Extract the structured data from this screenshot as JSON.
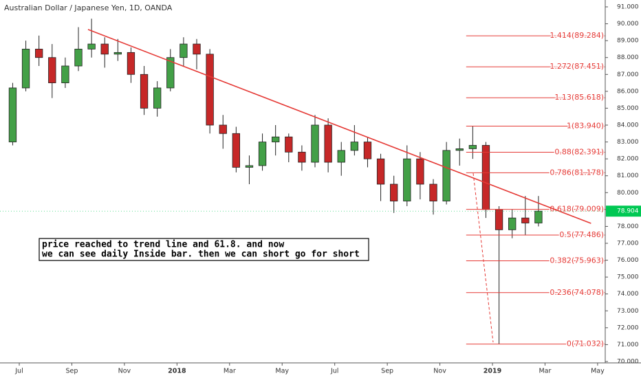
{
  "chart_data": {
    "type": "candlestick",
    "title": "Australian Dollar / Japanese Yen, 1D, OANDA",
    "categories": [
      null,
      null,
      null,
      null,
      null,
      null,
      null,
      null,
      null,
      null,
      null,
      null,
      null,
      null,
      null,
      null,
      null,
      null,
      null,
      null,
      null,
      null,
      null,
      null,
      null,
      null,
      null,
      null,
      null,
      null,
      null,
      null,
      null,
      null,
      null,
      null,
      null,
      null,
      null,
      null,
      null
    ],
    "open": [
      83.0,
      86.2,
      88.5,
      88.0,
      86.5,
      87.5,
      88.5,
      88.8,
      88.2,
      88.3,
      87.0,
      85.0,
      86.2,
      88.0,
      88.8,
      88.2,
      84.0,
      83.5,
      81.5,
      81.6,
      83.0,
      83.3,
      82.4,
      81.8,
      84.0,
      81.8,
      82.5,
      83.0,
      82.0,
      80.5,
      79.5,
      82.0,
      80.5,
      79.5,
      82.5,
      82.6,
      82.8,
      79.0,
      77.8,
      78.5,
      78.2
    ],
    "high": [
      86.5,
      89.0,
      89.3,
      88.8,
      88.0,
      89.8,
      90.3,
      89.2,
      89.1,
      88.6,
      87.5,
      86.6,
      88.5,
      89.2,
      89.1,
      88.5,
      84.6,
      83.9,
      82.2,
      83.5,
      84.0,
      83.5,
      82.8,
      84.6,
      84.4,
      83.0,
      84.0,
      83.3,
      82.3,
      81.0,
      82.8,
      82.4,
      80.8,
      83.0,
      83.2,
      83.94,
      83.0,
      79.2,
      79.0,
      79.8,
      79.8
    ],
    "low": [
      82.8,
      86.0,
      87.5,
      85.6,
      86.2,
      87.2,
      88.0,
      87.4,
      87.8,
      86.5,
      84.6,
      84.5,
      86.0,
      87.5,
      87.3,
      83.5,
      82.6,
      81.2,
      80.5,
      81.3,
      82.2,
      81.8,
      81.3,
      81.5,
      81.2,
      81.0,
      82.2,
      81.5,
      79.5,
      78.8,
      79.2,
      79.6,
      78.7,
      79.3,
      81.6,
      82.0,
      78.5,
      71.032,
      77.3,
      77.5,
      78.0
    ],
    "close": [
      86.2,
      88.5,
      88.0,
      86.5,
      87.5,
      88.5,
      88.8,
      88.2,
      88.3,
      87.0,
      85.0,
      86.2,
      88.0,
      88.8,
      88.2,
      84.0,
      83.5,
      81.5,
      81.6,
      83.0,
      83.3,
      82.4,
      81.8,
      84.0,
      81.8,
      82.5,
      83.0,
      82.0,
      80.5,
      79.5,
      82.0,
      80.5,
      79.5,
      82.5,
      82.6,
      82.8,
      79.0,
      77.8,
      78.5,
      78.2,
      78.904
    ],
    "up_color": "#43a047",
    "down_color": "#c62828",
    "xlim": [
      -0.965,
      45.08
    ],
    "xticks": [
      {
        "value": 0.5,
        "label": "Jul"
      },
      {
        "value": 4.5,
        "label": "Sep"
      },
      {
        "value": 8.5,
        "label": "Nov"
      },
      {
        "value": 12.5,
        "label": "2018"
      },
      {
        "value": 16.5,
        "label": "Mar"
      },
      {
        "value": 20.5,
        "label": "May"
      },
      {
        "value": 24.5,
        "label": "Jul"
      },
      {
        "value": 28.5,
        "label": "Sep"
      },
      {
        "value": 32.5,
        "label": "Nov"
      },
      {
        "value": 36.5,
        "label": "2019"
      },
      {
        "value": 40.5,
        "label": "Mar"
      },
      {
        "value": 44.5,
        "label": "May"
      }
    ],
    "ylim": [
      70,
      91
    ],
    "yticks": [
      {
        "value": 70,
        "label": "70.000"
      },
      {
        "value": 71,
        "label": "71.000"
      },
      {
        "value": 72,
        "label": "72.000"
      },
      {
        "value": 73,
        "label": "73.000"
      },
      {
        "value": 74,
        "label": "74.000"
      },
      {
        "value": 75,
        "label": "75.000"
      },
      {
        "value": 76,
        "label": "76.000"
      },
      {
        "value": 77,
        "label": "77.000"
      },
      {
        "value": 78,
        "label": "78.000"
      },
      {
        "value": 79,
        "label": "79.000"
      },
      {
        "value": 80,
        "label": "80.000"
      },
      {
        "value": 81,
        "label": "81.000"
      },
      {
        "value": 82,
        "label": "82.000"
      },
      {
        "value": 83,
        "label": "83.000"
      },
      {
        "value": 84,
        "label": "84.000"
      },
      {
        "value": 85,
        "label": "85.000"
      },
      {
        "value": 86,
        "label": "86.000"
      },
      {
        "value": 87,
        "label": "87.000"
      },
      {
        "value": 88,
        "label": "88.000"
      },
      {
        "value": 89,
        "label": "89.000"
      },
      {
        "value": 90,
        "label": "90.000"
      },
      {
        "value": 91,
        "label": "91.000"
      }
    ],
    "last_price": {
      "value": 78.904,
      "label": "78.904",
      "color": "#00c853"
    },
    "trend_line": {
      "x": [
        5.73,
        44.0
      ],
      "y": [
        89.66,
        78.18
      ],
      "color": "#e53935"
    },
    "fib_color": "#e53935",
    "fib_start_x": 34.5,
    "fib_levels": [
      {
        "value": 89.284,
        "label": "1.414(89.284)"
      },
      {
        "value": 87.451,
        "label": "1.272(87.451)"
      },
      {
        "value": 85.618,
        "label": "1.13(85.618)"
      },
      {
        "value": 83.94,
        "label": "1(83.940)"
      },
      {
        "value": 82.391,
        "label": "0.88(82.391)"
      },
      {
        "value": 81.178,
        "label": "0.786(81.178)"
      },
      {
        "value": 79.009,
        "label": "0.618(79.009)"
      },
      {
        "value": 77.486,
        "label": "0.5(77.486)"
      },
      {
        "value": 75.963,
        "label": "0.382(75.963)"
      },
      {
        "value": 74.078,
        "label": "0.236(74.078)"
      },
      {
        "value": 71.032,
        "label": "0(71.032)"
      }
    ],
    "annotation": [
      "price reached to trend line and 61.8. and now",
      "we can see daily Inside bar. then we can short go for short"
    ]
  }
}
